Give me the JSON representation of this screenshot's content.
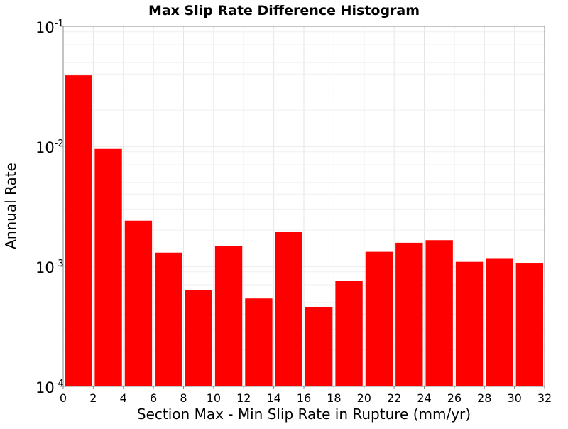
{
  "chart_data": {
    "type": "bar",
    "title": "Max Slip Rate Difference Histogram",
    "xlabel": "Section Max - Min Slip Rate in Rupture (mm/yr)",
    "ylabel": "Annual Rate",
    "yscale": "log",
    "xlim": [
      0,
      32
    ],
    "ylim": [
      0.0001,
      0.1
    ],
    "xticks": [
      "0",
      "2",
      "4",
      "6",
      "8",
      "10",
      "12",
      "14",
      "16",
      "18",
      "20",
      "22",
      "24",
      "26",
      "28",
      "30",
      "32"
    ],
    "yticks": [
      {
        "base": "10",
        "exp": "-4",
        "value": 0.0001
      },
      {
        "base": "10",
        "exp": "-3",
        "value": 0.001
      },
      {
        "base": "10",
        "exp": "-2",
        "value": 0.01
      },
      {
        "base": "10",
        "exp": "-1",
        "value": 0.1
      }
    ],
    "grid": true,
    "bar_color": "#ff0000",
    "bin_width": 2,
    "x": [
      1,
      3,
      5,
      7,
      9,
      11,
      13,
      15,
      17,
      19,
      21,
      23,
      25,
      27,
      29,
      31
    ],
    "values": [
      0.039,
      0.0095,
      0.0024,
      0.0013,
      0.00063,
      0.00147,
      0.00054,
      0.00195,
      0.00046,
      0.00076,
      0.00132,
      0.00157,
      0.00165,
      0.00109,
      0.00117,
      0.00107
    ]
  }
}
